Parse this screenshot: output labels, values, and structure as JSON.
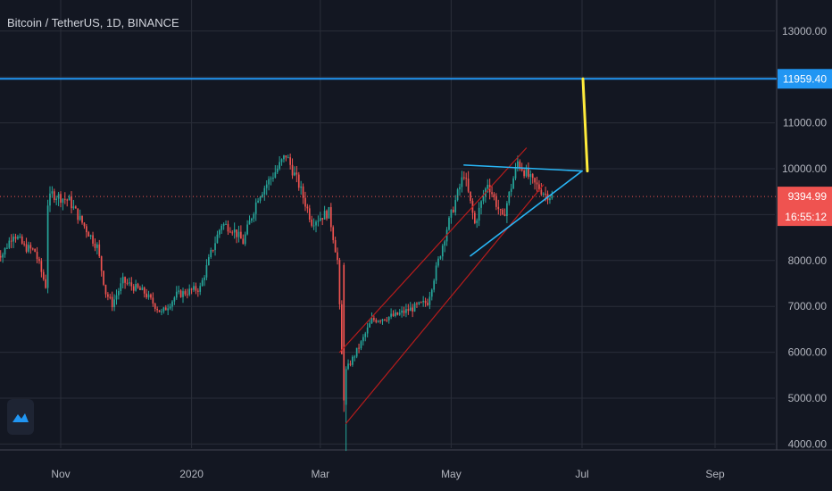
{
  "header": {
    "title": "Bitcoin / TetherUS, 1D, BINANCE"
  },
  "price_axis": {
    "ticks": [
      "13000.00",
      "11000.00",
      "10000.00",
      "8000.00",
      "7000.00",
      "6000.00",
      "5000.00",
      "4000.00"
    ],
    "resistance_label": "11959.40",
    "last_price_label": "9394.99",
    "countdown_label": "16:55:12"
  },
  "time_axis": {
    "ticks": [
      "Nov",
      "2020",
      "Mar",
      "May",
      "Jul",
      "Sep"
    ]
  },
  "colors": {
    "background": "#131722",
    "grid": "#2a2e39",
    "up": "#26a69a",
    "down": "#ef5350",
    "resistance": "#2196f3",
    "channel": "#b71c1c",
    "triangle": "#29b6f6",
    "projection": "#ffeb3b",
    "last_price": "#ef5350"
  },
  "chart_data": {
    "type": "candlestick",
    "title": "Bitcoin / TetherUS, 1D, BINANCE",
    "xlabel": "",
    "ylabel": "",
    "ylim": [
      3800,
      13900
    ],
    "x_range": [
      "2019-10-02",
      "2020-09-30"
    ],
    "grid": true,
    "scale": "linear",
    "last_price": 9394.99,
    "resistance_level": 11959.4,
    "ohlc_daily_close_approx": [
      {
        "date": "2019-10-05",
        "close": 8150
      },
      {
        "date": "2019-10-10",
        "close": 8600
      },
      {
        "date": "2019-10-15",
        "close": 8300
      },
      {
        "date": "2019-10-20",
        "close": 8200
      },
      {
        "date": "2019-10-25",
        "close": 7450
      },
      {
        "date": "2019-10-26",
        "close": 9250
      },
      {
        "date": "2019-10-28",
        "close": 9450
      },
      {
        "date": "2019-11-05",
        "close": 9300
      },
      {
        "date": "2019-11-10",
        "close": 8900
      },
      {
        "date": "2019-11-18",
        "close": 8300
      },
      {
        "date": "2019-11-22",
        "close": 7300
      },
      {
        "date": "2019-11-25",
        "close": 7050
      },
      {
        "date": "2019-11-30",
        "close": 7550
      },
      {
        "date": "2019-12-10",
        "close": 7300
      },
      {
        "date": "2019-12-18",
        "close": 6850
      },
      {
        "date": "2019-12-25",
        "close": 7250
      },
      {
        "date": "2020-01-05",
        "close": 7400
      },
      {
        "date": "2020-01-10",
        "close": 8150
      },
      {
        "date": "2020-01-15",
        "close": 8800
      },
      {
        "date": "2020-01-20",
        "close": 8700
      },
      {
        "date": "2020-01-25",
        "close": 8400
      },
      {
        "date": "2020-02-01",
        "close": 9400
      },
      {
        "date": "2020-02-10",
        "close": 10000
      },
      {
        "date": "2020-02-14",
        "close": 10300
      },
      {
        "date": "2020-02-20",
        "close": 9650
      },
      {
        "date": "2020-02-26",
        "close": 8850
      },
      {
        "date": "2020-03-05",
        "close": 9050
      },
      {
        "date": "2020-03-09",
        "close": 8000
      },
      {
        "date": "2020-03-12",
        "close": 4900
      },
      {
        "date": "2020-03-13",
        "close": 5600
      },
      {
        "date": "2020-03-20",
        "close": 6200
      },
      {
        "date": "2020-03-25",
        "close": 6700
      },
      {
        "date": "2020-04-05",
        "close": 6800
      },
      {
        "date": "2020-04-10",
        "close": 6900
      },
      {
        "date": "2020-04-20",
        "close": 7100
      },
      {
        "date": "2020-04-29",
        "close": 8700
      },
      {
        "date": "2020-05-07",
        "close": 9900
      },
      {
        "date": "2020-05-12",
        "close": 8800
      },
      {
        "date": "2020-05-18",
        "close": 9700
      },
      {
        "date": "2020-05-25",
        "close": 8900
      },
      {
        "date": "2020-06-01",
        "close": 10150
      },
      {
        "date": "2020-06-08",
        "close": 9700
      },
      {
        "date": "2020-06-14",
        "close": 9450
      },
      {
        "date": "2020-06-17",
        "close": 9395
      }
    ],
    "annotations": [
      {
        "kind": "horizontal_line",
        "label": "11959.40",
        "y": 11959.4
      },
      {
        "kind": "ascending_channel_lower",
        "from": {
          "date": "2020-03-13",
          "y": 4450
        },
        "to": {
          "date": "2020-06-13",
          "y": 9650
        }
      },
      {
        "kind": "ascending_channel_upper",
        "from": {
          "date": "2020-03-10",
          "y": 6000
        },
        "to": {
          "date": "2020-06-05",
          "y": 10450
        }
      },
      {
        "kind": "triangle_upper",
        "from": {
          "date": "2020-05-07",
          "y": 10080
        },
        "to": {
          "date": "2020-07-01",
          "y": 9950
        }
      },
      {
        "kind": "triangle_lower",
        "from": {
          "date": "2020-05-10",
          "y": 8100
        },
        "to": {
          "date": "2020-07-01",
          "y": 9950
        }
      },
      {
        "kind": "projection",
        "from": {
          "date": "2020-07-01",
          "y": 9950
        },
        "to": {
          "date": "2020-07-01",
          "y": 11959.4
        }
      }
    ]
  }
}
